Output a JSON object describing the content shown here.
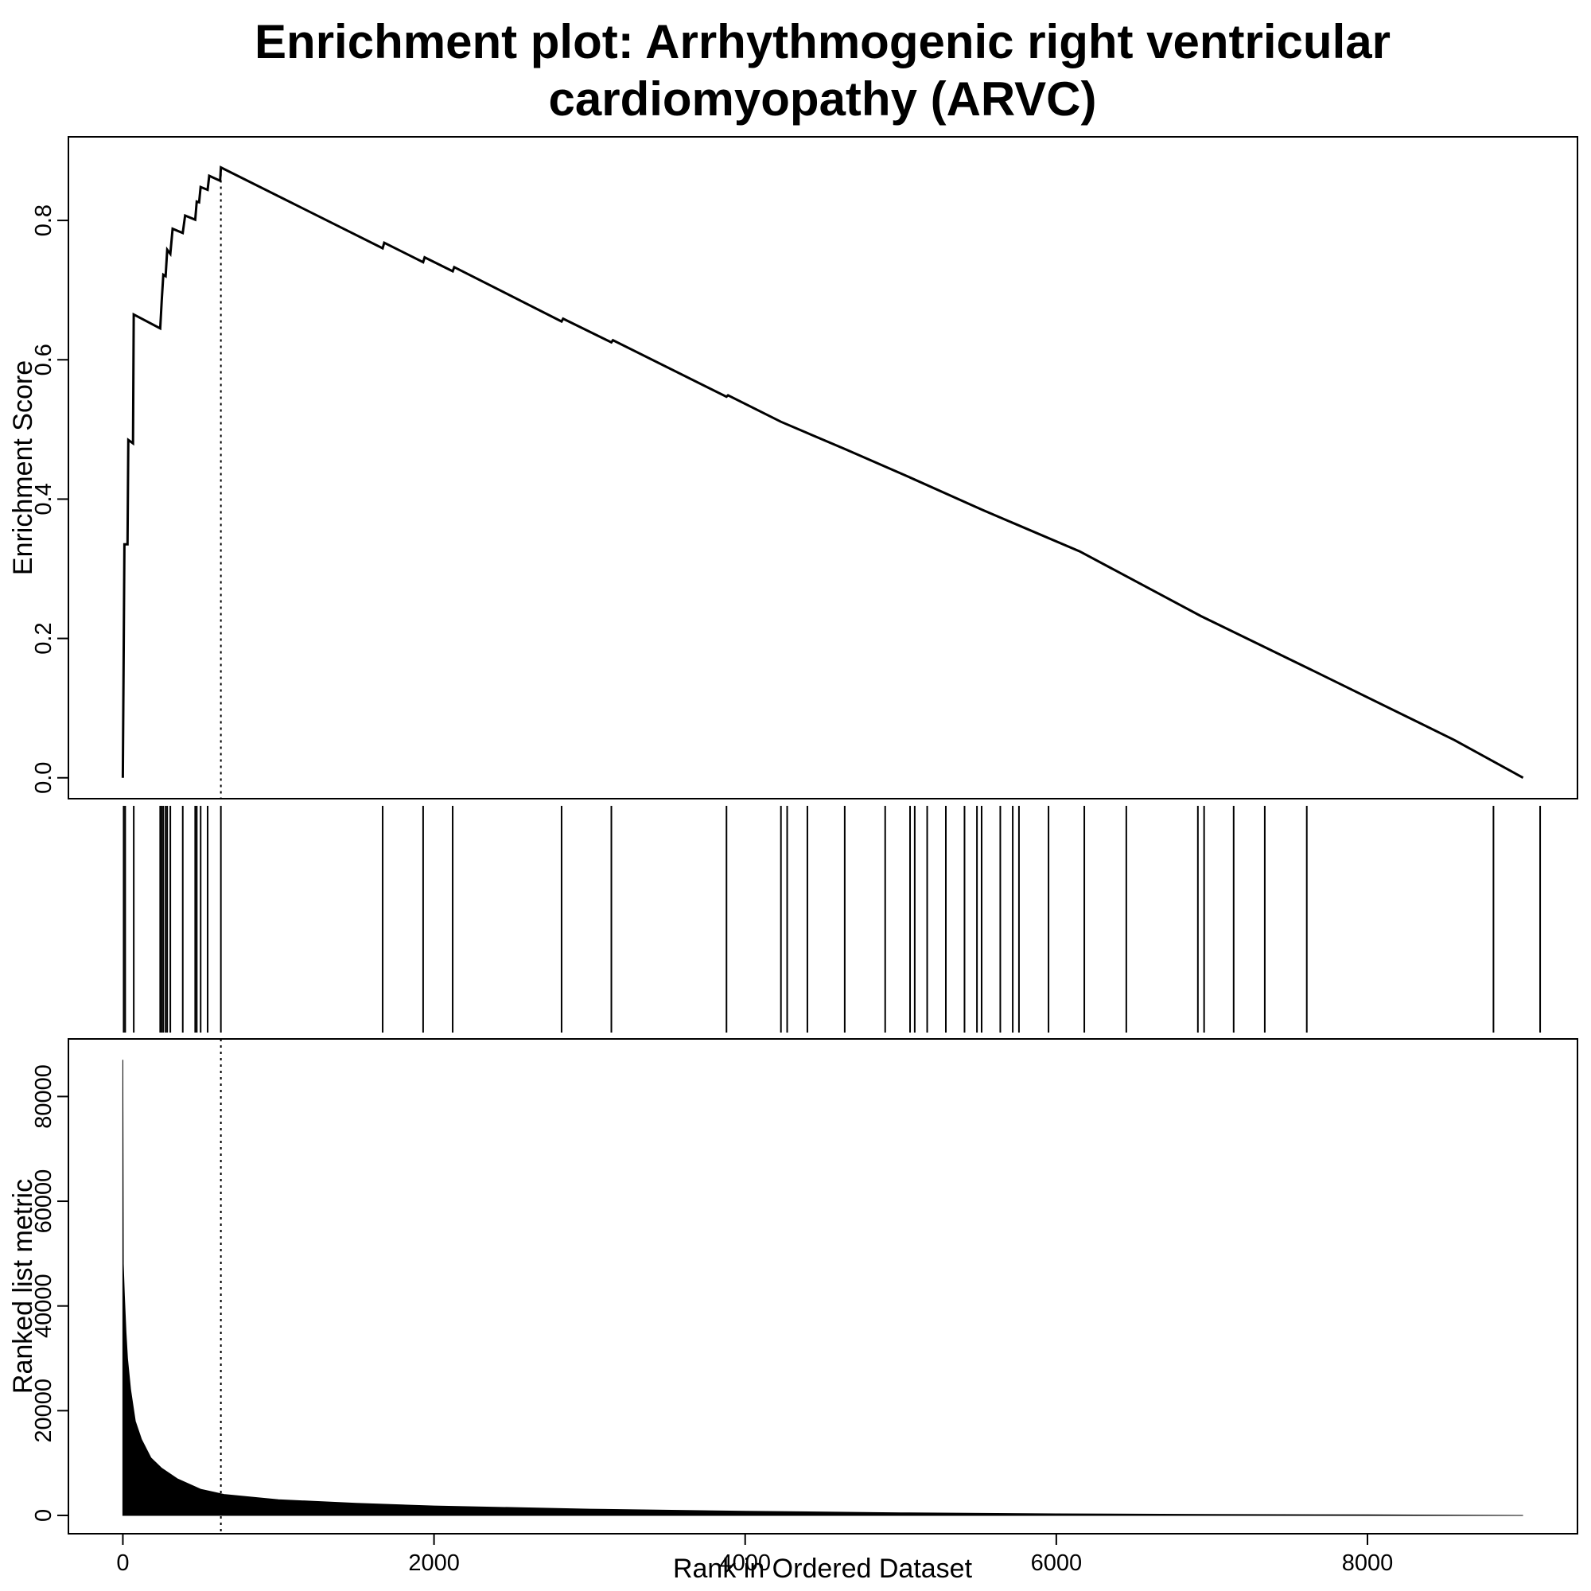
{
  "chart_data": [
    {
      "type": "line",
      "panel": "enrichment-score",
      "title_lines": [
        "Enrichment plot: Arrhythmogenic right ventricular",
        "cardiomyopathy (ARVC)"
      ],
      "xlabel": "",
      "ylabel": "Enrichment Score",
      "xlim": [
        -350,
        9350
      ],
      "ylim": [
        -0.03,
        0.92
      ],
      "yticks": [
        0.0,
        0.2,
        0.4,
        0.6,
        0.8
      ],
      "ytick_labels": [
        "0.0",
        "0.2",
        "0.4",
        "0.6",
        "0.8"
      ],
      "max_es_rank": 630,
      "points": [
        [
          0,
          0.0
        ],
        [
          10,
          0.335
        ],
        [
          30,
          0.335
        ],
        [
          35,
          0.485
        ],
        [
          65,
          0.48
        ],
        [
          70,
          0.665
        ],
        [
          240,
          0.645
        ],
        [
          250,
          0.685
        ],
        [
          260,
          0.722
        ],
        [
          275,
          0.72
        ],
        [
          285,
          0.758
        ],
        [
          305,
          0.752
        ],
        [
          320,
          0.788
        ],
        [
          385,
          0.782
        ],
        [
          400,
          0.807
        ],
        [
          465,
          0.801
        ],
        [
          475,
          0.827
        ],
        [
          490,
          0.826
        ],
        [
          500,
          0.848
        ],
        [
          545,
          0.844
        ],
        [
          555,
          0.864
        ],
        [
          625,
          0.857
        ],
        [
          630,
          0.876
        ],
        [
          1670,
          0.76
        ],
        [
          1680,
          0.768
        ],
        [
          1930,
          0.74
        ],
        [
          1940,
          0.747
        ],
        [
          2120,
          0.727
        ],
        [
          2130,
          0.733
        ],
        [
          2820,
          0.655
        ],
        [
          2830,
          0.659
        ],
        [
          3140,
          0.625
        ],
        [
          3150,
          0.628
        ],
        [
          3880,
          0.547
        ],
        [
          3890,
          0.549
        ],
        [
          4230,
          0.511
        ],
        [
          4640,
          0.472
        ],
        [
          5050,
          0.432
        ],
        [
          5530,
          0.384
        ],
        [
          6150,
          0.325
        ],
        [
          6930,
          0.232
        ],
        [
          7630,
          0.156
        ],
        [
          8560,
          0.054
        ],
        [
          9000,
          0.0
        ]
      ]
    },
    {
      "type": "scatter",
      "panel": "gene-hits",
      "xlim": [
        -350,
        9350
      ],
      "hit_ranks": [
        5,
        15,
        70,
        240,
        250,
        260,
        275,
        285,
        305,
        385,
        465,
        475,
        500,
        545,
        630,
        1670,
        1930,
        2120,
        2820,
        3140,
        3880,
        4230,
        4270,
        4400,
        4640,
        4900,
        5060,
        5090,
        5170,
        5290,
        5410,
        5490,
        5520,
        5640,
        5720,
        5760,
        5950,
        6180,
        6450,
        6910,
        6950,
        7140,
        7340,
        7610,
        8810,
        9110
      ]
    },
    {
      "type": "area",
      "panel": "ranked-metric",
      "xlabel": "Rank in Ordered Dataset",
      "ylabel": "Ranked list metric",
      "xlim": [
        -350,
        9350
      ],
      "ylim": [
        -3500,
        91000
      ],
      "xticks": [
        0,
        2000,
        4000,
        6000,
        8000
      ],
      "xtick_labels": [
        "0",
        "2000",
        "4000",
        "6000",
        "8000"
      ],
      "yticks": [
        0,
        20000,
        40000,
        60000,
        80000
      ],
      "ytick_labels": [
        "0",
        "20000",
        "40000",
        "60000",
        "80000"
      ],
      "points": [
        [
          0,
          87000
        ],
        [
          3,
          48000
        ],
        [
          10,
          42000
        ],
        [
          20,
          35000
        ],
        [
          30,
          30000
        ],
        [
          50,
          24000
        ],
        [
          80,
          18000
        ],
        [
          120,
          14500
        ],
        [
          180,
          11000
        ],
        [
          250,
          9000
        ],
        [
          350,
          7000
        ],
        [
          500,
          5000
        ],
        [
          650,
          4000
        ],
        [
          1000,
          3000
        ],
        [
          1500,
          2300
        ],
        [
          2000,
          1800
        ],
        [
          3000,
          1200
        ],
        [
          4000,
          800
        ],
        [
          5000,
          500
        ],
        [
          6000,
          300
        ],
        [
          7000,
          180
        ],
        [
          8000,
          100
        ],
        [
          9000,
          0
        ]
      ]
    }
  ]
}
